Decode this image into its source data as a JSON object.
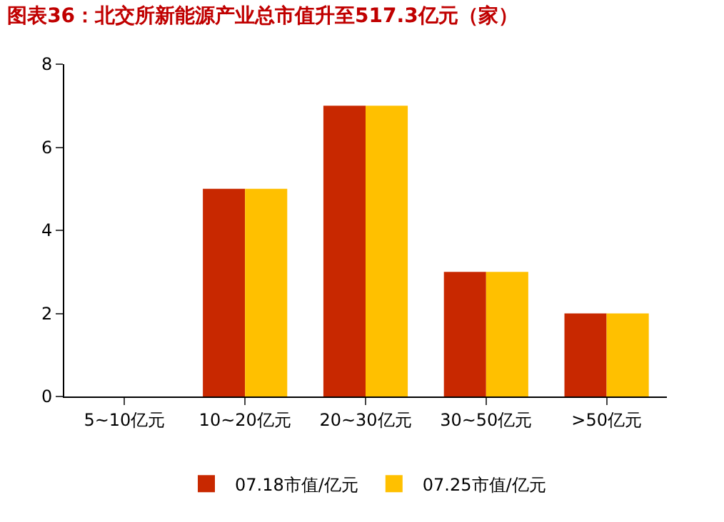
{
  "chart_data": {
    "type": "bar",
    "title": "图表36：北交所新能源产业总市值升至517.3亿元（家）",
    "categories": [
      "5~10亿元",
      "10~20亿元",
      "20~30亿元",
      "30~50亿元",
      ">50亿元"
    ],
    "series": [
      {
        "name": "07.18市值/亿元",
        "color": "#c82800",
        "values": [
          0,
          5,
          7,
          3,
          2
        ]
      },
      {
        "name": "07.25市值/亿元",
        "color": "#ffc000",
        "values": [
          0,
          5,
          7,
          3,
          2
        ]
      }
    ],
    "ylim": [
      0,
      8
    ],
    "yticks": [
      0,
      2,
      4,
      6,
      8
    ],
    "grid": false,
    "legend": "bottom"
  }
}
